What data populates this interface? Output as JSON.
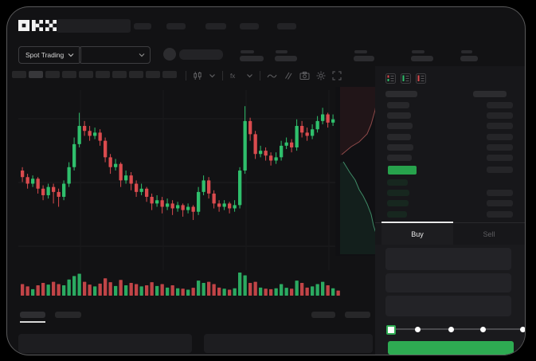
{
  "logo": "OKX",
  "colors": {
    "up": "#2fbf6c",
    "down": "#da4b4e",
    "accent_green": "#2eab52",
    "book_last_price": "#27a24c",
    "bid_row_tint": "#17372682",
    "window_bg": "#121214",
    "panel_bg": "#17171a",
    "placeholder": "#242427",
    "grid": "#1d1d20",
    "tab_active_text": "#e8e8e8",
    "tab_inactive_text": "#5d5d60",
    "depth_ask_line": "#8f4a4a",
    "depth_bid_line": "#3f8a66"
  },
  "header": {
    "nav_placeholder_count": 5
  },
  "trade_bar": {
    "market_selector": {
      "label": "Spot Trading",
      "chevron_icon": "chevron-down-icon"
    },
    "pair_selector_chevron_icon": "chevron-down-icon",
    "stat_pair_count": 5
  },
  "toolbar": {
    "timeframe_chip_count": 10,
    "active_timeframe_index": 1,
    "icons": [
      "candle-style-icon",
      "chevron-down-icon",
      "indicators-icon",
      "chevron-down-icon",
      "line-tool-icon",
      "drawing-tools-icon",
      "camera-icon",
      "settings-gear-icon",
      "fullscreen-icon"
    ]
  },
  "chart_data": {
    "type": "candlestick",
    "title": "",
    "note": "OHLC in relative price units (0=pane bottom, 100=pane top); no axis labels visible in screenshot",
    "ylim": [
      0,
      100
    ],
    "grid": true,
    "candles": [
      [
        58,
        54,
        51,
        60
      ],
      [
        54,
        50,
        47,
        56
      ],
      [
        50,
        53,
        48,
        55
      ],
      [
        53,
        47,
        44,
        54
      ],
      [
        47,
        43,
        40,
        49
      ],
      [
        43,
        48,
        41,
        50
      ],
      [
        48,
        45,
        38,
        50
      ],
      [
        45,
        42,
        36,
        47
      ],
      [
        42,
        50,
        40,
        52
      ],
      [
        50,
        60,
        48,
        63
      ],
      [
        60,
        74,
        58,
        78
      ],
      [
        74,
        85,
        72,
        93
      ],
      [
        85,
        82,
        79,
        88
      ],
      [
        82,
        79,
        76,
        85
      ],
      [
        79,
        81,
        77,
        84
      ],
      [
        81,
        76,
        73,
        83
      ],
      [
        76,
        66,
        63,
        78
      ],
      [
        66,
        60,
        56,
        68
      ],
      [
        60,
        62,
        58,
        65
      ],
      [
        62,
        52,
        48,
        63
      ],
      [
        52,
        55,
        50,
        58
      ],
      [
        55,
        50,
        46,
        57
      ],
      [
        50,
        45,
        42,
        52
      ],
      [
        45,
        47,
        43,
        50
      ],
      [
        47,
        42,
        39,
        48
      ],
      [
        42,
        38,
        34,
        44
      ],
      [
        38,
        40,
        36,
        43
      ],
      [
        40,
        36,
        32,
        42
      ],
      [
        36,
        38,
        34,
        41
      ],
      [
        38,
        35,
        31,
        40
      ],
      [
        35,
        37,
        33,
        39
      ],
      [
        37,
        34,
        30,
        38
      ],
      [
        34,
        36,
        32,
        38
      ],
      [
        36,
        33,
        28,
        37
      ],
      [
        33,
        45,
        31,
        48
      ],
      [
        45,
        52,
        43,
        55
      ],
      [
        52,
        44,
        41,
        54
      ],
      [
        44,
        38,
        35,
        46
      ],
      [
        38,
        36,
        33,
        40
      ],
      [
        36,
        38,
        34,
        40
      ],
      [
        38,
        35,
        32,
        39
      ],
      [
        35,
        37,
        33,
        40
      ],
      [
        37,
        58,
        35,
        60
      ],
      [
        58,
        88,
        56,
        97
      ],
      [
        88,
        80,
        76,
        90
      ],
      [
        80,
        68,
        65,
        82
      ],
      [
        68,
        70,
        66,
        73
      ],
      [
        70,
        67,
        64,
        72
      ],
      [
        67,
        64,
        61,
        69
      ],
      [
        64,
        66,
        62,
        69
      ],
      [
        66,
        73,
        64,
        76
      ],
      [
        73,
        75,
        71,
        78
      ],
      [
        75,
        72,
        69,
        77
      ],
      [
        72,
        85,
        70,
        89
      ],
      [
        85,
        81,
        78,
        88
      ],
      [
        81,
        79,
        76,
        84
      ],
      [
        79,
        83,
        77,
        86
      ],
      [
        83,
        88,
        81,
        91
      ],
      [
        88,
        92,
        86,
        96
      ],
      [
        92,
        87,
        84,
        93
      ],
      [
        87,
        89,
        85,
        92
      ],
      [
        89,
        85,
        82,
        90
      ]
    ],
    "volumes": [
      50,
      40,
      28,
      45,
      55,
      48,
      60,
      50,
      45,
      70,
      85,
      95,
      60,
      48,
      40,
      52,
      75,
      58,
      42,
      68,
      45,
      55,
      50,
      40,
      45,
      58,
      42,
      50,
      35,
      45,
      32,
      30,
      26,
      34,
      65,
      55,
      60,
      50,
      35,
      30,
      26,
      32,
      100,
      88,
      55,
      60,
      35,
      30,
      28,
      32,
      50,
      34,
      30,
      65,
      55,
      35,
      40,
      50,
      60,
      45,
      32,
      22
    ]
  },
  "depth": {
    "type": "area",
    "note": "vertical market-depth strip; points in strip-local px (58x212)",
    "ask_polygon": [
      [
        6,
        0
      ],
      [
        51,
        0
      ],
      [
        53,
        10
      ],
      [
        50,
        29
      ],
      [
        45,
        47
      ],
      [
        40,
        59
      ],
      [
        30,
        69
      ],
      [
        20,
        75
      ],
      [
        8,
        85
      ],
      [
        6,
        87
      ]
    ],
    "bid_polygon": [
      [
        6,
        96
      ],
      [
        10,
        94
      ],
      [
        18,
        107
      ],
      [
        25,
        117
      ],
      [
        30,
        129
      ],
      [
        35,
        137
      ],
      [
        40,
        147
      ],
      [
        45,
        160
      ],
      [
        48,
        174
      ],
      [
        52,
        187
      ],
      [
        53,
        204
      ],
      [
        53,
        210
      ],
      [
        6,
        210
      ]
    ],
    "last_price_marker_color": "#2eab52"
  },
  "order_book": {
    "view_icons": [
      "book-combined-icon",
      "book-bids-icon",
      "book-asks-icon"
    ],
    "ask_row_count": 6,
    "bid_row_count": 4,
    "last_price_highlight": "green"
  },
  "trade_panel": {
    "tabs": [
      {
        "label": "Buy",
        "active": true
      },
      {
        "label": "Sell",
        "active": false
      }
    ],
    "input_placeholder_count": 3,
    "slider": {
      "stop_count": 5,
      "selected_index": 0
    },
    "submit_button_color": "#2eab52"
  },
  "bottom_section": {
    "left_tab_count": 2,
    "active_left_tab_index": 0,
    "right_label_count": 2,
    "block_count": 2
  }
}
